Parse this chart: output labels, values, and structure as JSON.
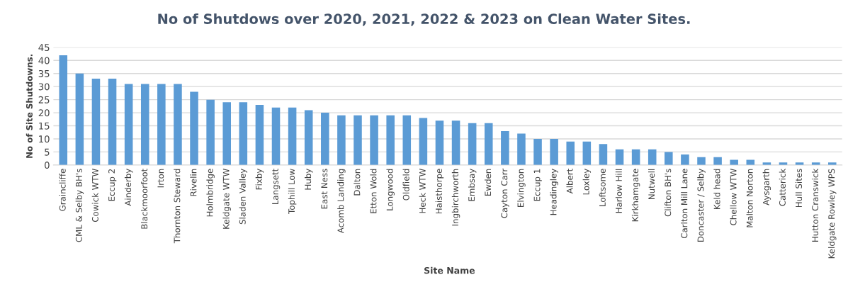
{
  "chart_data": {
    "type": "bar",
    "title": "No of Shutdows over 2020, 2021, 2022 & 2023 on Clean Water Sites.",
    "xlabel": "Site Name",
    "ylabel": "No of Site Shutdowns.",
    "categories": [
      "Graincliffe",
      "CML & Selby BH's",
      "Cowick WTW",
      "Eccup 2",
      "Ainderby",
      "Blackmoorfoot",
      "Irton",
      "Thornton Steward",
      "Rivelin",
      "Holmbridge",
      "Keldgate WTW",
      "Sladen Valley",
      "Fixby",
      "Langsett",
      "Tophill Low",
      "Huby",
      "East Ness",
      "Acomb Landing",
      "Dalton",
      "Etton Wold",
      "Longwood",
      "Oldfield",
      "Heck WTW",
      "Haisthorpe",
      "Ingbirchworth",
      "Embsay",
      "Ewden",
      "Cayton Carr",
      "Elvington",
      "Eccup 1",
      "Headingley",
      "Albert",
      "Loxley",
      "Loftsome",
      "Harlow Hill",
      "Kirkhamgate",
      "Nutwell",
      "Clifton BH's",
      "Carlton Mill Lane",
      "Doncaster / Selby",
      "Keld head",
      "Chellow WTW",
      "Malton Norton",
      "Aysgarth",
      "Catterick",
      "Hull Sites",
      "Hutton Cranswick",
      "Keldgate Rowley WPS"
    ],
    "values": [
      42,
      35,
      33,
      33,
      31,
      31,
      31,
      31,
      28,
      25,
      24,
      24,
      23,
      22,
      22,
      21,
      20,
      19,
      19,
      19,
      19,
      19,
      18,
      17,
      17,
      16,
      16,
      13,
      12,
      10,
      10,
      9,
      9,
      8,
      6,
      6,
      6,
      5,
      4,
      3,
      3,
      2,
      2,
      1,
      1,
      1,
      1,
      1
    ],
    "color": "#5b9bd5",
    "ylim": [
      0,
      45
    ],
    "yticks": [
      0,
      5,
      10,
      15,
      20,
      25,
      30,
      35,
      40,
      45
    ],
    "grid": "y"
  }
}
